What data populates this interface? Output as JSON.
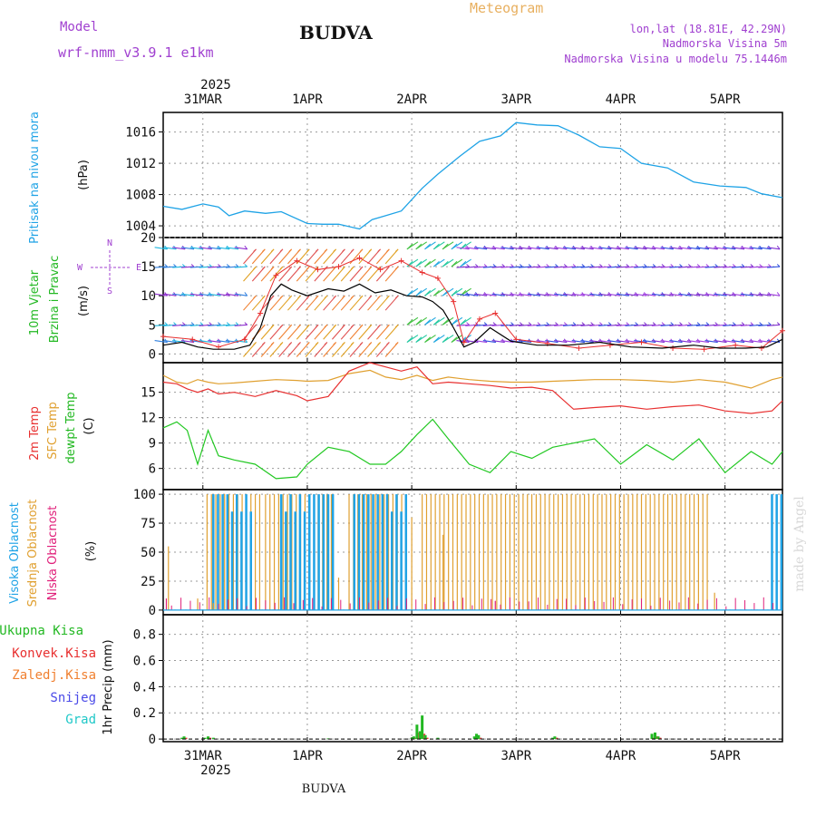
{
  "header": {
    "model_label": "Model",
    "model_name": "wrf-nmm_v3.9.1  e1km",
    "station": "BUDVA",
    "product": "Meteogram",
    "lonlat": "lon,lat (18.81E, 42.29N)",
    "altitude": "Nadmorska Visina 5m",
    "model_altitude": "Nadmorska Visina u modelu 75.1446m"
  },
  "footer": {
    "station": "BUDVA",
    "credit": "made by Angel"
  },
  "colors": {
    "pressure": "#1fa3e6",
    "wind_label": "#22b822",
    "wind_speed": "#000000",
    "gust": "#e83030",
    "temp2m": "#e83030",
    "sfc": "#e0a030",
    "dewpt": "#22c822",
    "high_cloud": "#1fa3e6",
    "mid_cloud": "#e0a030",
    "low_cloud": "#e0207a",
    "total_precip": "#22b822",
    "conv_precip": "#e83030",
    "frozen_precip": "#f08030",
    "snow": "#4a4ae8",
    "hail": "#20c8c8",
    "header_purple": "#a040d0",
    "header_orange": "#e8b060"
  },
  "time_axis": {
    "top_year": "2025",
    "top_labels": [
      "31MAR",
      "1APR",
      "2APR",
      "3APR",
      "4APR",
      "5APR"
    ],
    "bottom_labels": [
      "31MAR",
      "1APR",
      "2APR",
      "3APR",
      "4APR",
      "5APR"
    ],
    "bottom_year": "2025"
  },
  "panels": {
    "pressure": {
      "label": "Pritisak na nivou mora",
      "unit": "(hPa)",
      "ticks": [
        "1004",
        "1008",
        "1012",
        "1016"
      ]
    },
    "wind": {
      "label_a": "10m Vjetar",
      "label_b": "Brzina i Pravac",
      "unit": "(m/s)",
      "ticks": [
        "0",
        "5",
        "10",
        "15",
        "20"
      ],
      "compass": {
        "n": "N",
        "s": "S",
        "w": "W",
        "e": "E"
      }
    },
    "temperature": {
      "label_2m": "2m Temp",
      "label_sfc": "SFC Temp",
      "label_dew": "dewpt Temp",
      "unit": "(C)",
      "ticks": [
        "6",
        "9",
        "12",
        "15"
      ]
    },
    "clouds": {
      "label_high": "Visoka Oblacnost",
      "label_mid": "Srednja Oblacnost",
      "label_low": "Niska Oblacnost",
      "unit": "(%)",
      "ticks": [
        "0",
        "25",
        "50",
        "75",
        "100"
      ]
    },
    "precip": {
      "label_total": "Ukupna Kisa",
      "label_conv": "Konvek.Kisa",
      "label_frozen": "Zaledj.Kisa",
      "label_snow": "Snijeg",
      "label_hail": "Grad",
      "unit": "1hr Precip (mm)",
      "ticks": [
        "0",
        "0.2",
        "0.4",
        "0.6",
        "0.8"
      ]
    }
  },
  "chart_data": {
    "type": "line",
    "x_unit": "day",
    "x_range": [
      30.62,
      36.55
    ],
    "x_note": "x values are day-of-month: 31 = 31 Mar 00 UTC, 32 = 1 Apr 00 UTC, ... 36 = 5 Apr 00 UTC",
    "pressure_hpa": {
      "ylim": [
        1002.5,
        1018.5
      ],
      "x": [
        30.62,
        30.8,
        31.0,
        31.15,
        31.25,
        31.4,
        31.6,
        31.75,
        32.0,
        32.15,
        32.3,
        32.5,
        32.62,
        32.75,
        32.9,
        33.1,
        33.25,
        33.45,
        33.65,
        33.85,
        34.0,
        34.2,
        34.4,
        34.6,
        34.8,
        35.0,
        35.2,
        35.45,
        35.7,
        35.95,
        36.2,
        36.35,
        36.55
      ],
      "y": [
        1006.5,
        1006.1,
        1006.8,
        1006.4,
        1005.3,
        1005.9,
        1005.6,
        1005.8,
        1004.3,
        1004.2,
        1004.2,
        1003.6,
        1004.8,
        1005.3,
        1005.9,
        1008.8,
        1010.6,
        1012.8,
        1014.8,
        1015.5,
        1017.2,
        1016.9,
        1016.8,
        1015.6,
        1014.1,
        1013.9,
        1012.0,
        1011.4,
        1009.6,
        1009.1,
        1008.9,
        1008.1,
        1007.6
      ]
    },
    "wind_speed_ms": {
      "ylim": [
        -1.5,
        20
      ],
      "x": [
        30.62,
        30.8,
        30.95,
        31.1,
        31.3,
        31.45,
        31.55,
        31.65,
        31.75,
        31.85,
        32.0,
        32.2,
        32.35,
        32.5,
        32.65,
        32.8,
        32.95,
        33.1,
        33.2,
        33.3,
        33.4,
        33.5,
        33.6,
        33.75,
        33.95,
        34.2,
        34.5,
        34.8,
        35.1,
        35.4,
        35.7,
        35.95,
        36.2,
        36.4,
        36.55
      ],
      "y": [
        1.5,
        2.0,
        1.2,
        0.8,
        0.8,
        1.5,
        4.5,
        10.0,
        12.0,
        11.0,
        10.0,
        11.2,
        10.8,
        12.0,
        10.5,
        11.0,
        10.0,
        9.8,
        9.0,
        7.5,
        4.5,
        1.2,
        2.0,
        4.5,
        2.2,
        1.5,
        1.5,
        2.0,
        1.2,
        1.0,
        1.5,
        1.0,
        1.0,
        1.2,
        2.5
      ]
    },
    "wind_gust_ms": {
      "x": [
        30.62,
        30.9,
        31.15,
        31.4,
        31.55,
        31.7,
        31.9,
        32.1,
        32.3,
        32.5,
        32.7,
        32.9,
        33.1,
        33.25,
        33.4,
        33.5,
        33.65,
        33.8,
        34.0,
        34.3,
        34.6,
        34.9,
        35.2,
        35.5,
        35.8,
        36.1,
        36.35,
        36.55
      ],
      "y": [
        3.0,
        2.5,
        1.2,
        2.5,
        7.0,
        13.5,
        16.0,
        14.5,
        15.0,
        16.5,
        14.5,
        16.0,
        14.0,
        13.0,
        9.0,
        2.0,
        6.0,
        7.0,
        2.5,
        1.8,
        1.0,
        1.5,
        2.0,
        1.0,
        0.8,
        1.5,
        1.0,
        4.0
      ]
    },
    "temperature_c": {
      "ylim": [
        3.5,
        18.5
      ],
      "x": [
        30.62,
        30.75,
        30.85,
        30.95,
        31.05,
        31.15,
        31.3,
        31.5,
        31.7,
        31.9,
        32.0,
        32.2,
        32.4,
        32.6,
        32.75,
        32.9,
        33.05,
        33.2,
        33.35,
        33.55,
        33.75,
        33.95,
        34.15,
        34.35,
        34.55,
        34.75,
        35.0,
        35.25,
        35.5,
        35.75,
        36.0,
        36.25,
        36.45,
        36.55
      ],
      "temp2m": [
        16.2,
        16.0,
        15.4,
        15.0,
        15.4,
        14.8,
        15.0,
        14.5,
        15.2,
        14.6,
        14.0,
        14.5,
        17.5,
        19.0,
        18.0,
        17.5,
        18.0,
        16.0,
        16.2,
        16.0,
        15.8,
        15.5,
        15.6,
        15.2,
        13.0,
        13.2,
        13.4,
        13.0,
        13.3,
        13.5,
        12.8,
        12.5,
        12.8,
        14.0
      ],
      "sfc": [
        17.0,
        16.2,
        16.0,
        16.5,
        16.2,
        16.0,
        16.1,
        16.3,
        16.5,
        16.4,
        16.3,
        16.4,
        17.2,
        17.6,
        16.8,
        16.5,
        17.0,
        16.4,
        16.8,
        16.5,
        16.3,
        16.2,
        16.2,
        16.3,
        16.4,
        16.5,
        16.5,
        16.4,
        16.2,
        16.5,
        16.2,
        15.5,
        16.5,
        16.8
      ],
      "dewpt": [
        10.8,
        11.5,
        10.5,
        6.5,
        10.5,
        7.5,
        7.0,
        6.5,
        4.8,
        5.0,
        6.5,
        8.5,
        8.0,
        6.5,
        6.5,
        8.0,
        10.0,
        11.8,
        9.5,
        6.5,
        5.5,
        8.0,
        7.2,
        8.5,
        9.0,
        9.5,
        6.5,
        8.8,
        7.0,
        9.5,
        5.5,
        8.0,
        6.5,
        8.0
      ]
    },
    "clouds_pct": {
      "ylim": [
        -4,
        104
      ],
      "full_blocks": [
        {
          "type": "mid",
          "from": 31.04,
          "to": 31.55
        },
        {
          "type": "high",
          "from": 31.1,
          "to": 31.5
        },
        {
          "type": "mid",
          "from": 31.6,
          "to": 32.25
        },
        {
          "type": "high",
          "from": 31.75,
          "to": 32.25
        },
        {
          "type": "mid",
          "from": 32.4,
          "to": 32.95
        },
        {
          "type": "high",
          "from": 32.45,
          "to": 32.95
        },
        {
          "type": "mid",
          "from": 33.1,
          "to": 35.85
        },
        {
          "type": "high",
          "from": 36.45,
          "to": 36.55
        }
      ],
      "spikes": [
        {
          "type": "mid",
          "x": 30.67,
          "y": 55
        },
        {
          "type": "low",
          "x": 30.65,
          "y": 10
        },
        {
          "type": "mid",
          "x": 30.95,
          "y": 10
        },
        {
          "type": "mid",
          "x": 31.1,
          "y": 6
        },
        {
          "type": "mid",
          "x": 32.3,
          "y": 28
        },
        {
          "type": "mid",
          "x": 33.0,
          "y": 80
        },
        {
          "type": "mid",
          "x": 33.3,
          "y": 65
        },
        {
          "type": "low",
          "x": 33.8,
          "y": 8
        },
        {
          "type": "mid",
          "x": 35.9,
          "y": 15
        }
      ]
    },
    "precip_mm": {
      "ylim": [
        -0.02,
        0.95
      ],
      "x": [
        30.8,
        30.82,
        31.02,
        31.05,
        31.1,
        32.2,
        33.0,
        33.02,
        33.05,
        33.08,
        33.1,
        33.13,
        33.25,
        33.6,
        33.62,
        33.64,
        34.35,
        34.37,
        35.3,
        35.33,
        35.36
      ],
      "total": [
        0.01,
        0.02,
        0.01,
        0.02,
        0.01,
        0.005,
        0.01,
        0.02,
        0.11,
        0.06,
        0.18,
        0.03,
        0.01,
        0.02,
        0.04,
        0.03,
        0.01,
        0.02,
        0.04,
        0.05,
        0.02
      ],
      "convective": [
        0.0,
        0.01,
        0.0,
        0.01,
        0.0,
        0.0,
        0.0,
        0.01,
        0.05,
        0.02,
        0.04,
        0.01,
        0.0,
        0.01,
        0.02,
        0.01,
        0.0,
        0.01,
        0.01,
        0.02,
        0.01
      ]
    }
  }
}
